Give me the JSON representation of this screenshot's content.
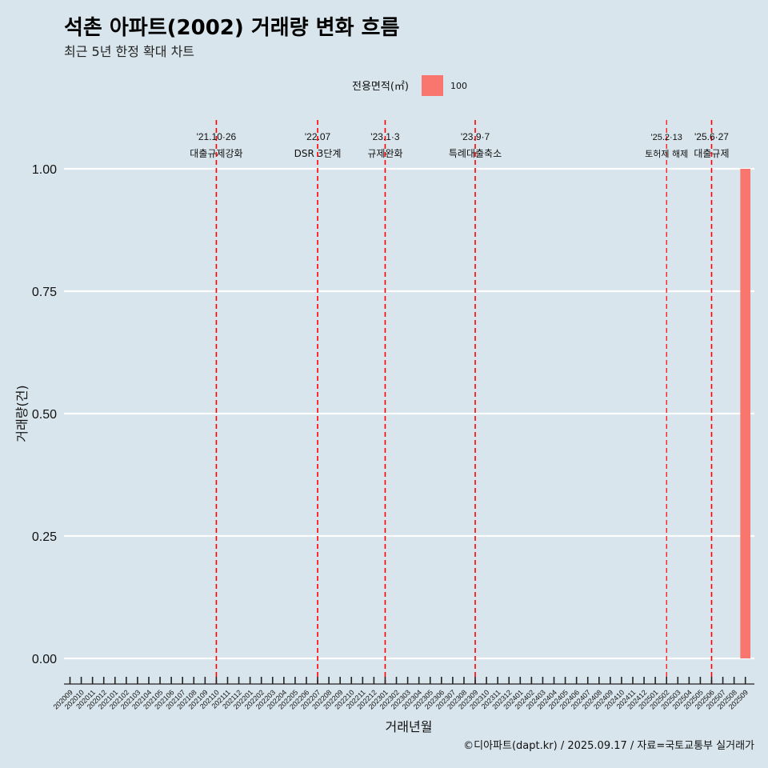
{
  "chart_data": {
    "type": "bar",
    "title": "석촌 아파트(2002) 거래량 변화 흐름",
    "subtitle": "최근 5년 한정 확대 차트",
    "xlabel": "거래년월",
    "ylabel": "거래량(건)",
    "caption": "©디아파트(dapt.kr) / 2025.09.17 / 자료=국토교통부 실거래가",
    "ylim": [
      0,
      1
    ],
    "yticks": [
      "0.00",
      "0.25",
      "0.50",
      "0.75",
      "1.00"
    ],
    "grid": "horizontal major",
    "legend": {
      "title": "전용면적(㎡)",
      "position": "top",
      "entries": [
        {
          "label": "100",
          "color": "#f8766d"
        }
      ]
    },
    "categories": [
      "202009",
      "202010",
      "202011",
      "202012",
      "202101",
      "202102",
      "202103",
      "202104",
      "202105",
      "202106",
      "202107",
      "202108",
      "202109",
      "202110",
      "202111",
      "202112",
      "202201",
      "202202",
      "202203",
      "202204",
      "202205",
      "202206",
      "202207",
      "202208",
      "202209",
      "202210",
      "202211",
      "202212",
      "202301",
      "202302",
      "202303",
      "202304",
      "202305",
      "202306",
      "202307",
      "202308",
      "202309",
      "202310",
      "202311",
      "202312",
      "202401",
      "202402",
      "202403",
      "202404",
      "202405",
      "202406",
      "202407",
      "202408",
      "202409",
      "202410",
      "202411",
      "202412",
      "202501",
      "202502",
      "202503",
      "202504",
      "202505",
      "202506",
      "202507",
      "202508",
      "202509"
    ],
    "series": [
      {
        "name": "100",
        "color": "#f8766d",
        "values": [
          0,
          0,
          0,
          0,
          0,
          0,
          0,
          0,
          0,
          0,
          0,
          0,
          0,
          0,
          0,
          0,
          0,
          0,
          0,
          0,
          0,
          0,
          0,
          0,
          0,
          0,
          0,
          0,
          0,
          0,
          0,
          0,
          0,
          0,
          0,
          0,
          0,
          0,
          0,
          0,
          0,
          0,
          0,
          0,
          0,
          0,
          0,
          0,
          0,
          0,
          0,
          0,
          0,
          0,
          0,
          0,
          0,
          0,
          0,
          0,
          1
        ]
      }
    ],
    "annotations": [
      {
        "month": "202110",
        "date": "'21.10·26",
        "label": "대출규제강화",
        "small": false
      },
      {
        "month": "202207",
        "date": "'22.07",
        "label": "DSR 3단계",
        "small": false
      },
      {
        "month": "202301",
        "date": "'23.1·3",
        "label": "규제완화",
        "small": false
      },
      {
        "month": "202309",
        "date": "'23.9·7",
        "label": "특례대출축소",
        "small": false
      },
      {
        "month": "202502",
        "date": "'25.2·13",
        "label": "토허제 해제",
        "small": true
      },
      {
        "month": "202506",
        "date": "'25.6·27",
        "label": "대출규제",
        "small": false
      }
    ]
  }
}
